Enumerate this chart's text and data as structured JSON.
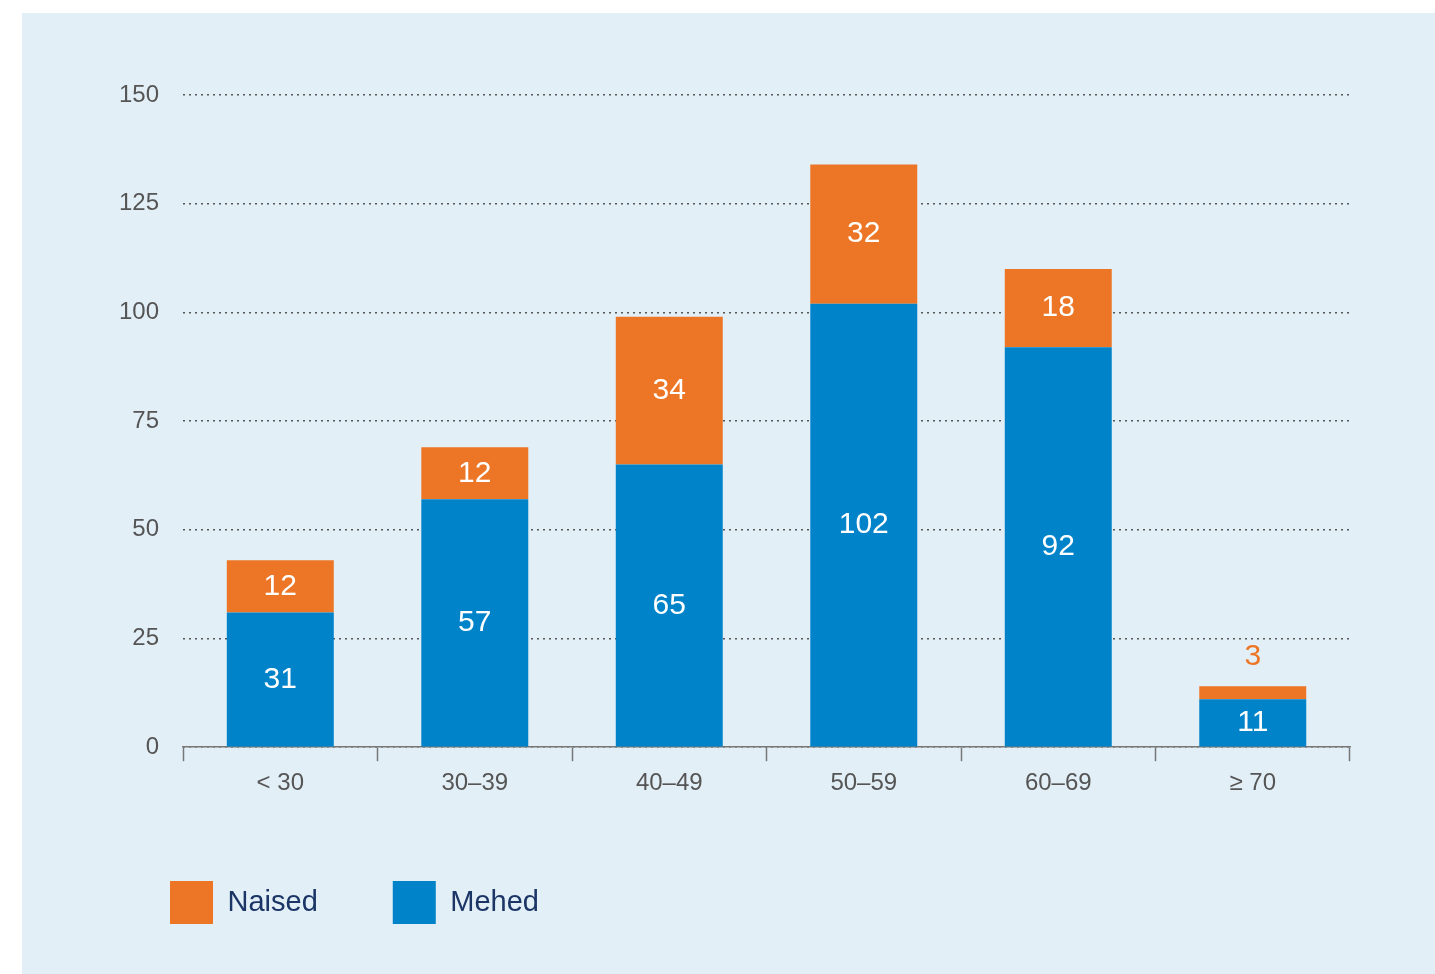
{
  "chart_data": {
    "type": "bar",
    "stacked": true,
    "categories": [
      "< 30",
      "30–39",
      "40–49",
      "50–59",
      "60–69",
      "≥ 70"
    ],
    "series": [
      {
        "name": "Mehed",
        "color": "#0083c9",
        "values": [
          31,
          57,
          65,
          102,
          92,
          11
        ]
      },
      {
        "name": "Naised",
        "color": "#ec7625",
        "values": [
          12,
          12,
          34,
          32,
          18,
          3
        ]
      }
    ],
    "ylim": [
      0,
      150
    ],
    "yticks": [
      0,
      25,
      50,
      75,
      100,
      125,
      150
    ],
    "grid": "y",
    "legend": "bottom left",
    "data_labels": true
  }
}
